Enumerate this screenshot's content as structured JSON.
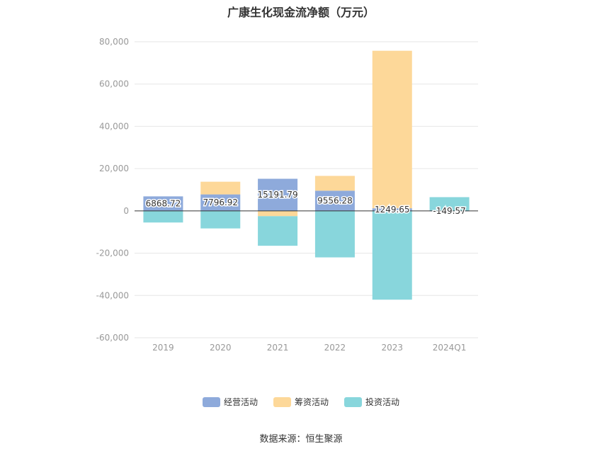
{
  "chart_data": {
    "type": "bar",
    "stacked": true,
    "title": "广康生化现金流净额（万元）",
    "categories": [
      "2019",
      "2020",
      "2021",
      "2022",
      "2023",
      "2024Q1"
    ],
    "series": [
      {
        "name": "经营活动",
        "color": "#8eaadb",
        "values": [
          6868.72,
          7796.92,
          15191.79,
          9556.28,
          1249.65,
          -149.57
        ]
      },
      {
        "name": "筹资活动",
        "color": "#fdd899",
        "values": [
          0,
          6000,
          -2500,
          7000,
          74500,
          0
        ]
      },
      {
        "name": "投资活动",
        "color": "#88d6dc",
        "values": [
          -5500,
          -8300,
          -14000,
          -22000,
          -42000,
          6500
        ]
      }
    ],
    "data_labels": [
      "6868.72",
      "7796.92",
      "15191.79",
      "9556.28",
      "1249.65",
      "-149.57"
    ],
    "ylim": [
      -60000,
      80000
    ],
    "yticks": [
      80000,
      60000,
      40000,
      20000,
      0,
      -20000,
      -40000,
      -60000
    ],
    "ytick_labels": [
      "80,000",
      "60,000",
      "40,000",
      "20,000",
      "0",
      "-20,000",
      "-40,000",
      "-60,000"
    ],
    "grid": true,
    "legend_position": "bottom"
  },
  "source_note": "数据来源：恒生聚源"
}
